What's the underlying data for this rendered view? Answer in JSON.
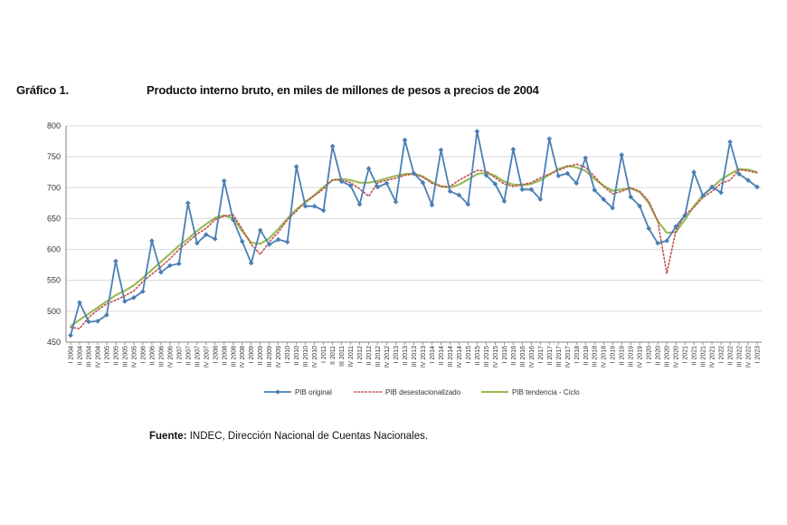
{
  "header": {
    "figure_label": "Gráfico 1.",
    "title": "Producto interno bruto, en miles de millones de pesos a precios de 2004"
  },
  "source": {
    "label": "Fuente:",
    "text": "INDEC, Dirección Nacional de Cuentas Nacionales."
  },
  "colors": {
    "original": "#4a7fb5",
    "desestacionalizado": "#c0504d",
    "tendencia": "#9bbb59",
    "grid": "#d9d9d9",
    "axis": "#808080"
  },
  "chart_data": {
    "type": "line",
    "title": "Producto interno bruto, en miles de millones de pesos a precios de 2004",
    "xlabel": "",
    "ylabel": "",
    "ylim": [
      450,
      800
    ],
    "yticks": [
      450,
      500,
      550,
      600,
      650,
      700,
      750,
      800
    ],
    "grid": true,
    "legend": "bottom-center",
    "categories": [
      "I 2004",
      "II 2004",
      "III 2004",
      "IV 2004",
      "I 2005",
      "II 2005",
      "III 2005",
      "IV 2005",
      "I 2006",
      "II 2006",
      "III 2006",
      "IV 2006",
      "I 2007",
      "II 2007",
      "III 2007",
      "IV 2007",
      "I 2008",
      "II 2008",
      "III 2008",
      "IV 2008",
      "I 2009",
      "II 2009",
      "III 2009",
      "IV 2009",
      "I 2010",
      "II 2010",
      "III 2010",
      "IV 2010",
      "I 2011",
      "II 2011",
      "III 2011",
      "IV 2011",
      "I 2012",
      "II 2012",
      "III 2012",
      "IV 2012",
      "I 2013",
      "II 2013",
      "III 2013",
      "IV 2013",
      "I 2014",
      "II 2014",
      "III 2014",
      "IV 2014",
      "I 2015",
      "II 2015",
      "III 2015",
      "IV 2015",
      "I 2016",
      "II 2016",
      "III 2016",
      "IV 2016",
      "I 2017",
      "II 2017",
      "III 2017",
      "IV 2017",
      "I 2018",
      "II 2018",
      "III 2018",
      "IV 2018",
      "I 2019",
      "II 2019",
      "III 2019",
      "IV 2019",
      "I 2020",
      "II 2020",
      "III 2020",
      "IV 2020",
      "I 2021",
      "II 2021",
      "III 2021",
      "IV 2021",
      "I 2022",
      "II 2022",
      "III 2022",
      "IV 2022",
      "I 2023"
    ],
    "series": [
      {
        "name": "PIB original",
        "style": "line-diamond",
        "values": [
          461,
          514,
          483,
          484,
          494,
          581,
          516,
          522,
          532,
          614,
          563,
          574,
          577,
          675,
          610,
          624,
          617,
          711,
          648,
          613,
          578,
          631,
          608,
          616,
          612,
          734,
          670,
          670,
          663,
          767,
          710,
          703,
          673,
          731,
          701,
          707,
          677,
          777,
          723,
          708,
          672,
          761,
          694,
          688,
          673,
          791,
          720,
          706,
          678,
          762,
          697,
          697,
          681,
          779,
          719,
          723,
          707,
          748,
          696,
          681,
          667,
          753,
          685,
          670,
          634,
          610,
          614,
          637,
          655,
          725,
          687,
          701,
          692,
          774,
          722,
          712,
          701
        ]
      },
      {
        "name": "PIB desestacionalizado",
        "style": "dotted",
        "values": [
          474,
          472,
          490,
          502,
          512,
          518,
          525,
          533,
          548,
          560,
          572,
          585,
          600,
          612,
          625,
          634,
          648,
          654,
          656,
          633,
          608,
          592,
          612,
          628,
          648,
          662,
          678,
          687,
          698,
          713,
          712,
          708,
          698,
          686,
          708,
          712,
          715,
          720,
          722,
          717,
          707,
          702,
          702,
          712,
          720,
          728,
          727,
          716,
          706,
          702,
          705,
          708,
          716,
          722,
          728,
          734,
          738,
          733,
          718,
          702,
          690,
          694,
          700,
          694,
          678,
          646,
          561,
          630,
          656,
          668,
          684,
          694,
          707,
          712,
          729,
          727,
          724
        ]
      },
      {
        "name": "PIB tendencia - Ciclo",
        "style": "solid",
        "values": [
          476,
          486,
          496,
          506,
          516,
          526,
          533,
          542,
          554,
          567,
          580,
          593,
          606,
          617,
          630,
          641,
          651,
          655,
          650,
          630,
          611,
          609,
          618,
          633,
          650,
          665,
          676,
          688,
          701,
          712,
          714,
          712,
          708,
          708,
          711,
          715,
          719,
          722,
          723,
          718,
          709,
          702,
          700,
          705,
          713,
          722,
          724,
          719,
          710,
          705,
          704,
          706,
          712,
          721,
          730,
          735,
          733,
          727,
          714,
          703,
          695,
          697,
          699,
          693,
          675,
          646,
          627,
          628,
          648,
          670,
          688,
          700,
          713,
          722,
          730,
          729,
          725
        ]
      }
    ]
  }
}
